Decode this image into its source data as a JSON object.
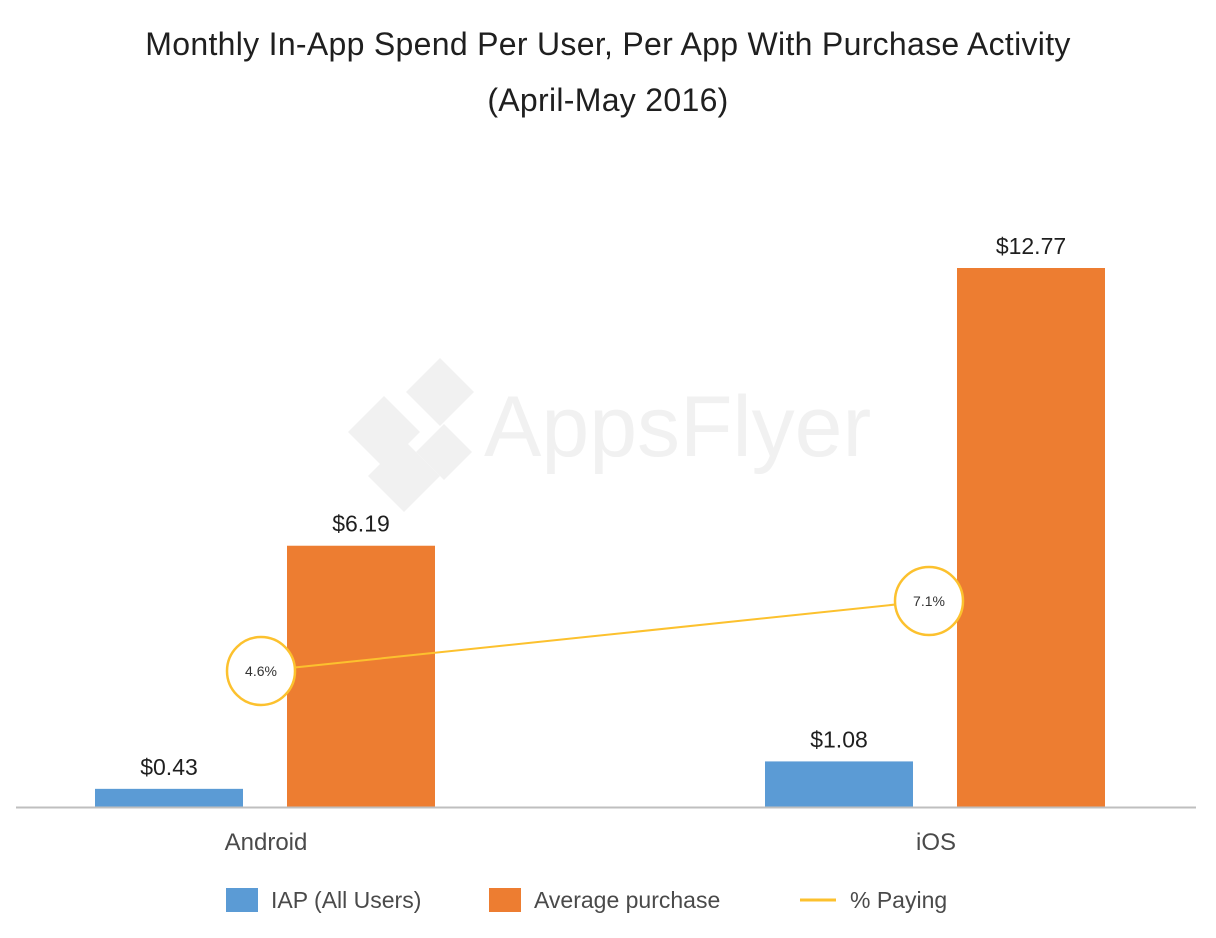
{
  "colors": {
    "iap": "#5b9bd5",
    "avg": "#ed7d31",
    "paying": "#fcc12e",
    "axis": "#bfbfbf",
    "watermark": "#f1f1f1"
  },
  "watermark": {
    "text": "AppsFlyer",
    "icon": "appsflyer-logo-icon"
  },
  "chart_data": {
    "type": "bar",
    "title": "Monthly In-App Spend Per User, Per App With Purchase Activity",
    "subtitle": "(April-May 2016)",
    "xlabel": "",
    "ylabel": "",
    "ylim": [
      0,
      13
    ],
    "grid": false,
    "legend_position": "bottom",
    "categories": [
      "Android",
      "iOS"
    ],
    "series": [
      {
        "name": "IAP (All Users)",
        "kind": "bar",
        "color_key": "iap",
        "values": [
          0.43,
          1.08
        ],
        "labels": [
          "$0.43",
          "$1.08"
        ]
      },
      {
        "name": "Average purchase",
        "kind": "bar",
        "color_key": "avg",
        "values": [
          6.19,
          12.77
        ],
        "labels": [
          "$6.19",
          "$12.77"
        ]
      },
      {
        "name": "% Paying",
        "kind": "line",
        "color_key": "paying",
        "values": [
          4.6,
          7.1
        ],
        "labels": [
          "4.6%",
          "7.1%"
        ]
      }
    ]
  }
}
